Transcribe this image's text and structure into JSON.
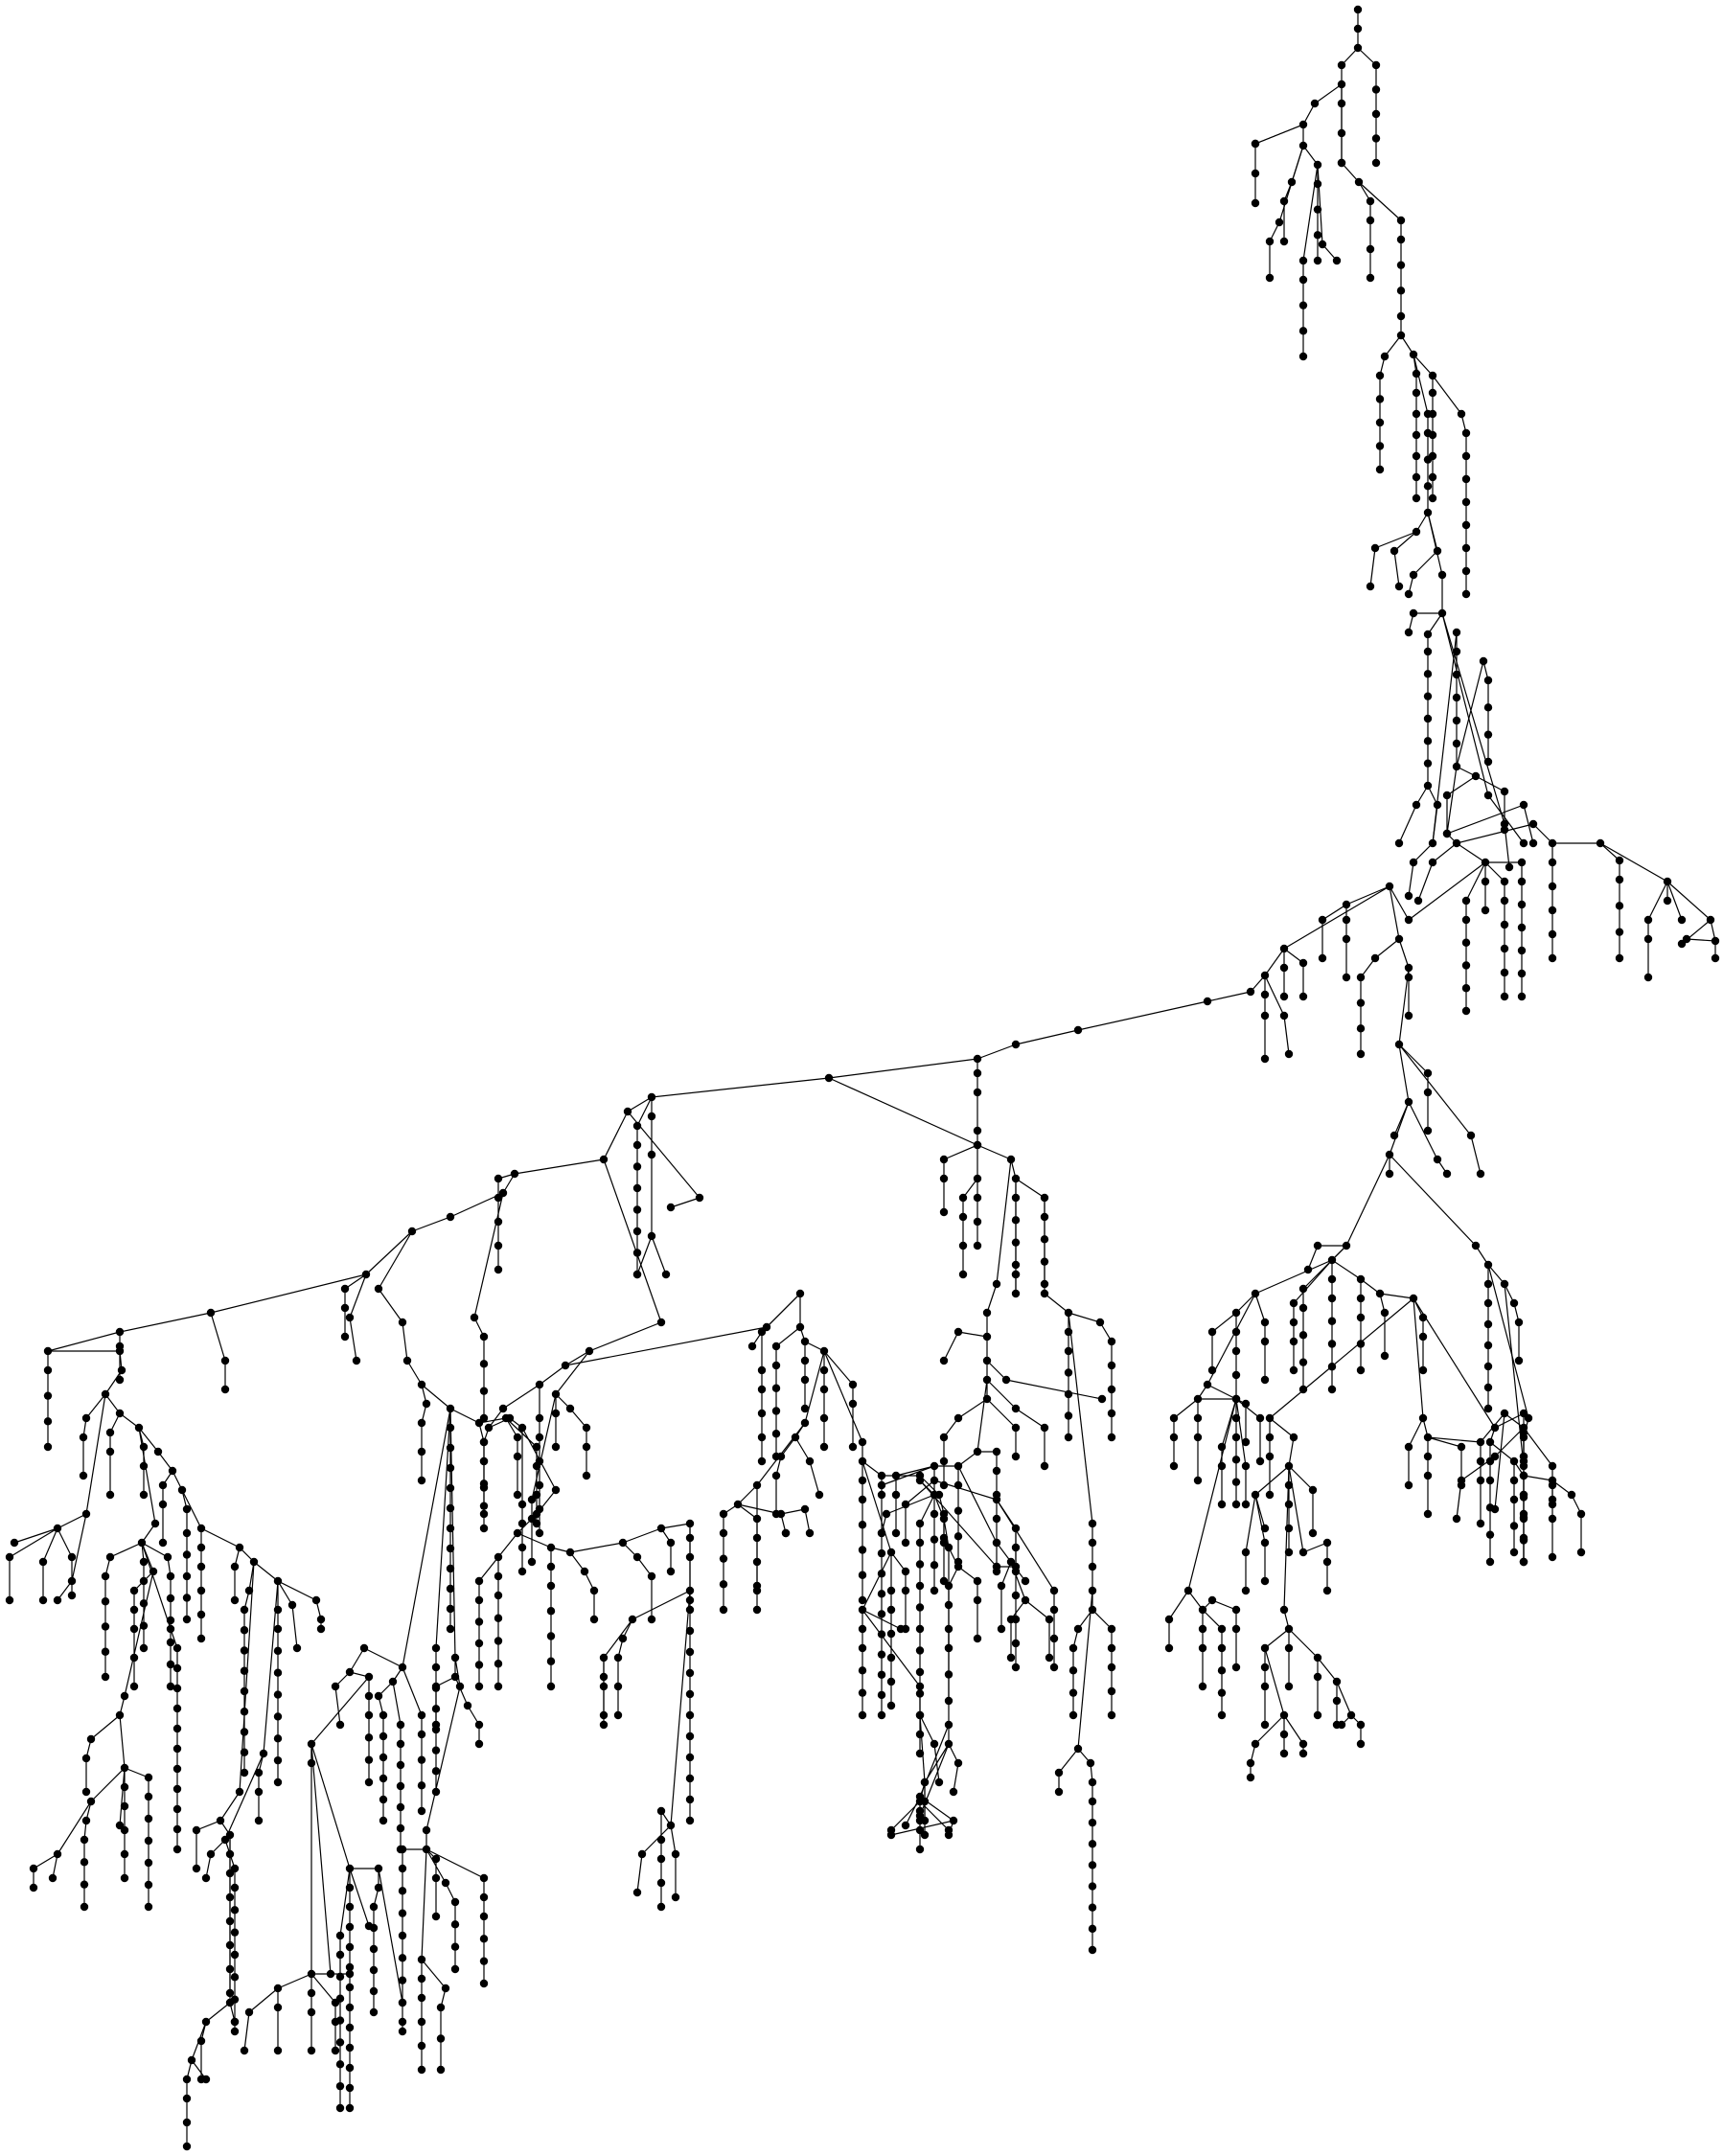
{
  "diagram": {
    "kind": "tree",
    "colors": {
      "node": "#000000",
      "edge": "#000000",
      "background": "#ffffff"
    },
    "labels": []
  }
}
